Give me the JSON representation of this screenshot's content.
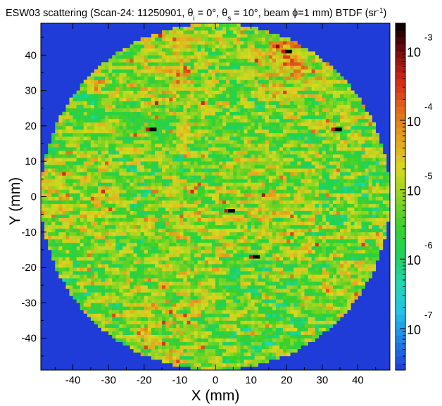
{
  "chart_data": {
    "type": "heatmap",
    "title": {
      "prefix": "ESW03 scattering  (Scan-24: 11250901, θ",
      "sub_i": "i",
      "part2": " = 0°, θ",
      "sub_s": "s",
      "part3": " = 10°, beam ϕ=1 mm) BTDF (sr",
      "sup": "-1",
      "suffix": ")"
    },
    "xlabel": "X (mm)",
    "ylabel": "Y (mm)",
    "xlim": [
      -49,
      49
    ],
    "ylim": [
      -49,
      49
    ],
    "x_ticks": [
      "-40",
      "-30",
      "-20",
      "-10",
      "0",
      "10",
      "20",
      "30",
      "40"
    ],
    "x_tick_values": [
      -40,
      -30,
      -20,
      -10,
      0,
      10,
      20,
      30,
      40
    ],
    "y_ticks": [
      "40",
      "30",
      "20",
      "10",
      "0",
      "-10",
      "-20",
      "-30",
      "-40"
    ],
    "y_tick_values": [
      40,
      30,
      20,
      10,
      0,
      -10,
      -20,
      -30,
      -40
    ],
    "aperture_radius_mm": 49,
    "background_color": "#1f3bd8",
    "typical_log10_btdf": -5.2,
    "colorbar": {
      "scale": "log",
      "range_log10": [
        -7.6,
        -2.6
      ],
      "ticks": [
        {
          "base": "10",
          "exp": "-3",
          "value": -3
        },
        {
          "base": "10",
          "exp": "-4",
          "value": -4
        },
        {
          "base": "10",
          "exp": "-5",
          "value": -5
        },
        {
          "base": "10",
          "exp": "-6",
          "value": -6
        },
        {
          "base": "10",
          "exp": "-7",
          "value": -7
        }
      ],
      "colors": [
        "#1f3bd8",
        "#1e7fe6",
        "#21c3e8",
        "#22d6b0",
        "#1ed25a",
        "#3ad12a",
        "#8fd422",
        "#d8d81f",
        "#e3a21f",
        "#e06a1c",
        "#d42a18",
        "#7a0c0c",
        "#000000"
      ]
    },
    "hotspots": [
      {
        "x": 20.5,
        "y": 41,
        "log10_btdf": -2.6
      },
      {
        "x": -17.5,
        "y": 19,
        "log10_btdf": -2.6
      },
      {
        "x": 34.5,
        "y": 19,
        "log10_btdf": -2.6
      },
      {
        "x": 4.5,
        "y": -4,
        "log10_btdf": -2.6
      },
      {
        "x": 11.5,
        "y": -17,
        "log10_btdf": -2.6
      }
    ],
    "bright_regions": [
      {
        "x": 20,
        "y": 40,
        "level": "high"
      },
      {
        "x": -8,
        "y": -5,
        "level": "medium"
      }
    ]
  }
}
